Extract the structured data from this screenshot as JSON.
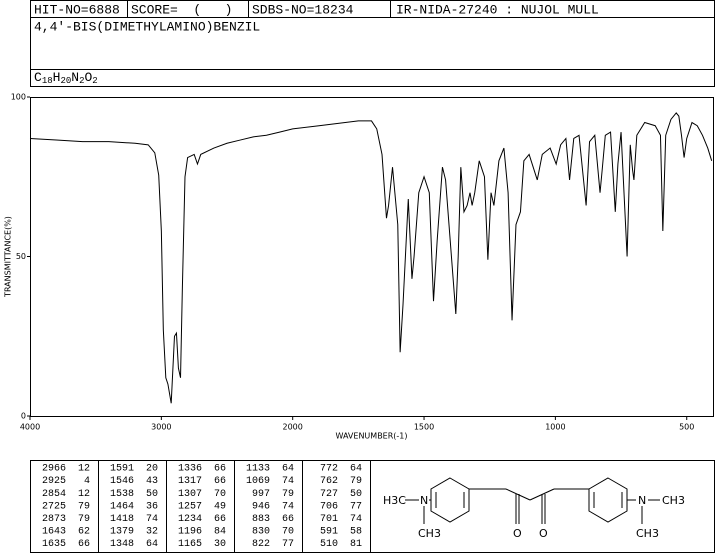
{
  "header": {
    "hit_no": "HIT-NO=6888",
    "score": "SCORE=  (   )",
    "sdbs_no": "SDBS-NO=18234",
    "method": "IR-NIDA-27240 : NUJOL MULL",
    "compound": "4,4'-BIS(DIMETHYLAMINO)BENZIL",
    "formula": [
      "C",
      "18",
      "H",
      "20",
      "N",
      "2",
      "O",
      "2"
    ]
  },
  "chart_data": {
    "type": "line",
    "x_label": "WAVENUMBER(-1)",
    "y_label": "TRANSMITTANCE(%)",
    "color": "#000000",
    "x": [
      4000,
      3800,
      3600,
      3400,
      3200,
      3100,
      3050,
      3020,
      3000,
      2985,
      2966,
      2950,
      2925,
      2900,
      2885,
      2870,
      2854,
      2840,
      2820,
      2800,
      2750,
      2725,
      2700,
      2600,
      2500,
      2400,
      2300,
      2200,
      2100,
      2000,
      1900,
      1800,
      1750,
      1700,
      1680,
      1660,
      1643,
      1635,
      1620,
      1600,
      1591,
      1580,
      1560,
      1546,
      1538,
      1520,
      1500,
      1480,
      1464,
      1450,
      1430,
      1418,
      1405,
      1379,
      1370,
      1360,
      1348,
      1336,
      1325,
      1317,
      1307,
      1290,
      1270,
      1257,
      1245,
      1234,
      1215,
      1196,
      1180,
      1165,
      1150,
      1133,
      1120,
      1100,
      1069,
      1050,
      1020,
      997,
      980,
      960,
      946,
      930,
      910,
      883,
      870,
      850,
      830,
      822,
      810,
      790,
      772,
      762,
      750,
      727,
      715,
      706,
      701,
      690,
      660,
      620,
      600,
      591,
      580,
      560,
      540,
      530,
      520,
      510,
      500,
      480,
      460,
      440,
      420,
      405
    ],
    "values": [
      87,
      86.5,
      86,
      86,
      85.5,
      85,
      82.5,
      75.5,
      58,
      27,
      12,
      10,
      4,
      25,
      26,
      15,
      12,
      40,
      75,
      81,
      82,
      79,
      82,
      84,
      85.5,
      86.5,
      87.5,
      88,
      89,
      90,
      91,
      92,
      92.5,
      92.5,
      90,
      82,
      62,
      66,
      78,
      60,
      20,
      35,
      68,
      43,
      50,
      70,
      75,
      70,
      36,
      55,
      78,
      74,
      60,
      32,
      50,
      78,
      64,
      66,
      70,
      66,
      70,
      80,
      75,
      49,
      70,
      66,
      80,
      84,
      70,
      30,
      60,
      64,
      80,
      82,
      74,
      82,
      84,
      79,
      85,
      87,
      74,
      87,
      88,
      66,
      86,
      88,
      70,
      77,
      88,
      89,
      64,
      79,
      89,
      50,
      85,
      77,
      74,
      88,
      92,
      91,
      88,
      58,
      88,
      93,
      95,
      94,
      88,
      81,
      87,
      92,
      91,
      88,
      84,
      80
    ],
    "xlim": [
      4000,
      400
    ],
    "ylim": [
      0,
      100
    ],
    "xticks": [
      4000,
      3000,
      2000,
      1500,
      1000,
      500
    ],
    "yticks": [
      0,
      50,
      100
    ],
    "x_scale_break": 2000
  },
  "peak_table": {
    "columns": [
      [
        [
          2966,
          12
        ],
        [
          2925,
          4
        ],
        [
          2854,
          12
        ],
        [
          2725,
          79
        ],
        [
          2873,
          79
        ],
        [
          1643,
          62
        ],
        [
          1635,
          66
        ]
      ],
      [
        [
          1591,
          20
        ],
        [
          1546,
          43
        ],
        [
          1538,
          50
        ],
        [
          1464,
          36
        ],
        [
          1418,
          74
        ],
        [
          1379,
          32
        ],
        [
          1348,
          64
        ]
      ],
      [
        [
          1336,
          66
        ],
        [
          1317,
          66
        ],
        [
          1307,
          70
        ],
        [
          1257,
          49
        ],
        [
          1234,
          66
        ],
        [
          1196,
          84
        ],
        [
          1165,
          30
        ]
      ],
      [
        [
          1133,
          64
        ],
        [
          1069,
          74
        ],
        [
          997,
          79
        ],
        [
          946,
          74
        ],
        [
          883,
          66
        ],
        [
          830,
          70
        ],
        [
          822,
          77
        ]
      ],
      [
        [
          772,
          64
        ],
        [
          762,
          79
        ],
        [
          727,
          50
        ],
        [
          706,
          77
        ],
        [
          701,
          74
        ],
        [
          591,
          58
        ],
        [
          510,
          81
        ]
      ]
    ]
  },
  "structure": {
    "labels": [
      "H3C",
      "N",
      "CH3",
      "O",
      "O",
      "N",
      "CH3",
      "CH3"
    ]
  }
}
